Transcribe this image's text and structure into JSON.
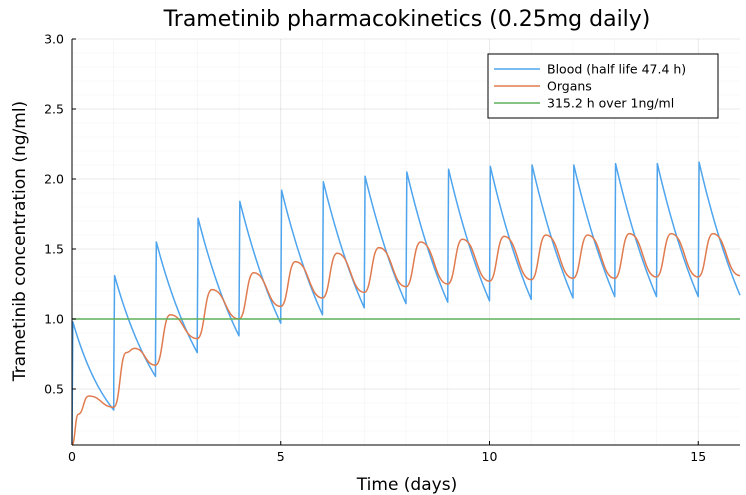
{
  "chart_data": {
    "type": "line",
    "title": "Trametinib pharmacokinetics (0.25mg daily)",
    "xlabel": "Time (days)",
    "ylabel": "Trametinib concentration (ng/ml)",
    "xlim": [
      0,
      16
    ],
    "ylim": [
      0.1,
      3.0
    ],
    "xticks": [
      0,
      5,
      10,
      15
    ],
    "xtick_labels": [
      "0",
      "5",
      "10",
      "15"
    ],
    "yticks": [
      0.5,
      1.0,
      1.5,
      2.0,
      2.5,
      3.0
    ],
    "ytick_labels": [
      "0.5",
      "1.0",
      "1.5",
      "2.0",
      "2.5",
      "3.0"
    ],
    "grid": true,
    "legend_position": "top-right",
    "dosing_interval_days": 1,
    "series": [
      {
        "name": "Blood (half life 47.4 h)",
        "color": "#4ea5ee",
        "peaks": [
          0.98,
          1.31,
          1.55,
          1.72,
          1.84,
          1.92,
          1.98,
          2.02,
          2.05,
          2.07,
          2.09,
          2.1,
          2.1,
          2.11,
          2.11,
          2.12
        ],
        "troughs": [
          0.35,
          0.59,
          0.76,
          0.88,
          0.97,
          1.03,
          1.08,
          1.11,
          1.12,
          1.13,
          1.14,
          1.15,
          1.16,
          1.16,
          1.16,
          1.16
        ],
        "end_value": 1.17
      },
      {
        "name": "Organs",
        "color": "#e07b4f",
        "points": [
          [
            0,
            0.1
          ],
          [
            0.15,
            0.32
          ],
          [
            0.4,
            0.45
          ],
          [
            1.0,
            0.37
          ],
          [
            1.3,
            0.76
          ],
          [
            1.5,
            0.79
          ],
          [
            2.0,
            0.67
          ],
          [
            2.35,
            1.03
          ],
          [
            3.0,
            0.86
          ],
          [
            3.35,
            1.21
          ],
          [
            4.0,
            1.0
          ],
          [
            4.35,
            1.33
          ],
          [
            5.0,
            1.09
          ],
          [
            5.35,
            1.41
          ],
          [
            6.0,
            1.15
          ],
          [
            6.35,
            1.47
          ],
          [
            7.0,
            1.19
          ],
          [
            7.35,
            1.51
          ],
          [
            8.0,
            1.23
          ],
          [
            8.35,
            1.55
          ],
          [
            9.0,
            1.25
          ],
          [
            9.35,
            1.57
          ],
          [
            10.0,
            1.27
          ],
          [
            10.35,
            1.59
          ],
          [
            11.0,
            1.28
          ],
          [
            11.35,
            1.6
          ],
          [
            12.0,
            1.29
          ],
          [
            12.35,
            1.6
          ],
          [
            13.0,
            1.29
          ],
          [
            13.35,
            1.61
          ],
          [
            14.0,
            1.3
          ],
          [
            14.35,
            1.61
          ],
          [
            15.0,
            1.3
          ],
          [
            15.35,
            1.61
          ],
          [
            16.0,
            1.31
          ]
        ]
      },
      {
        "name": "315.2 h over 1ng/ml",
        "color": "#5fb05c",
        "points": [
          [
            0,
            1.0
          ],
          [
            16,
            1.0
          ]
        ]
      }
    ]
  }
}
